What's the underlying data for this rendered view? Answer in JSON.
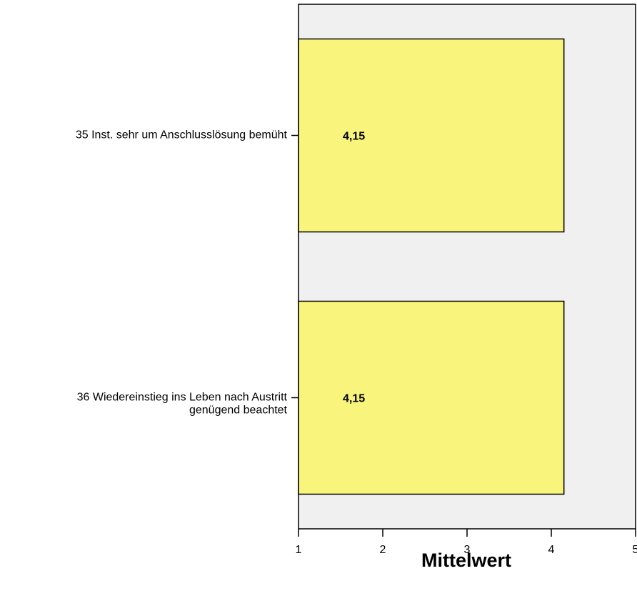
{
  "chart_data": {
    "type": "bar",
    "orientation": "horizontal",
    "categories": [
      [
        "35 Inst. sehr um Anschlusslösung bemüht"
      ],
      [
        "36 Wiedereinstieg ins Leben nach Austritt",
        "genügend beachtet"
      ]
    ],
    "values": [
      4.15,
      4.15
    ],
    "data_labels": [
      "4,15",
      "4,15"
    ],
    "xlabel": "Mittelwert",
    "xlim": [
      1,
      5
    ],
    "x_ticks": [
      1,
      2,
      3,
      4,
      5
    ],
    "x_tick_labels": [
      "1",
      "2",
      "3",
      "4",
      "5"
    ],
    "grid": false,
    "legend": "none",
    "colors": {
      "bar_fill": "#f8f47c",
      "plot_background": "#f0f0f0",
      "stroke": "#000000"
    }
  }
}
